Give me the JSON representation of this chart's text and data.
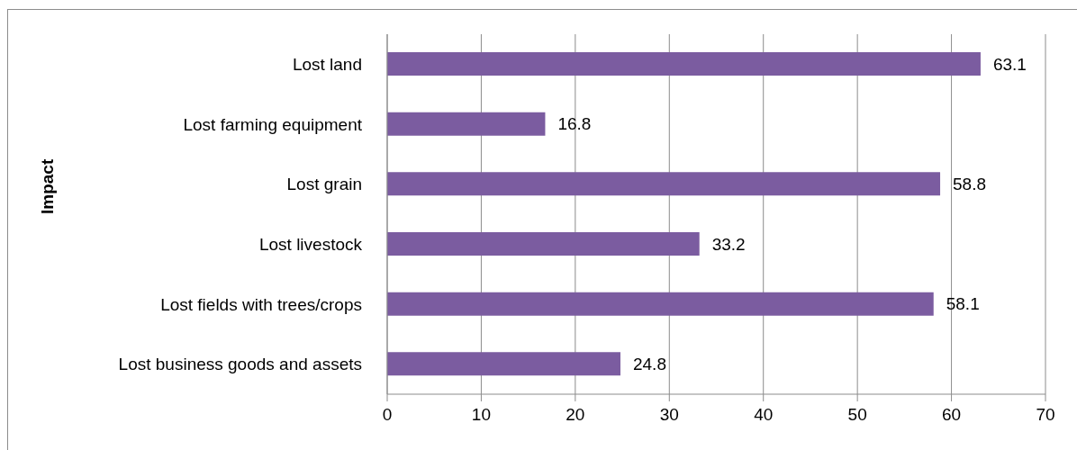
{
  "chart_data": {
    "type": "bar",
    "orientation": "horizontal",
    "ylabel": "Impact",
    "categories": [
      "Lost land",
      "Lost farming equipment",
      "Lost grain",
      "Lost livestock",
      "Lost fields with trees/crops",
      "Lost business goods and assets"
    ],
    "values": [
      63.1,
      16.8,
      58.8,
      33.2,
      58.1,
      24.8
    ],
    "color": "#7b5ca0",
    "xlim": [
      0,
      70
    ],
    "xticks": [
      0,
      10,
      20,
      30,
      40,
      50,
      60,
      70
    ],
    "grid": "x",
    "data_labels": true
  }
}
